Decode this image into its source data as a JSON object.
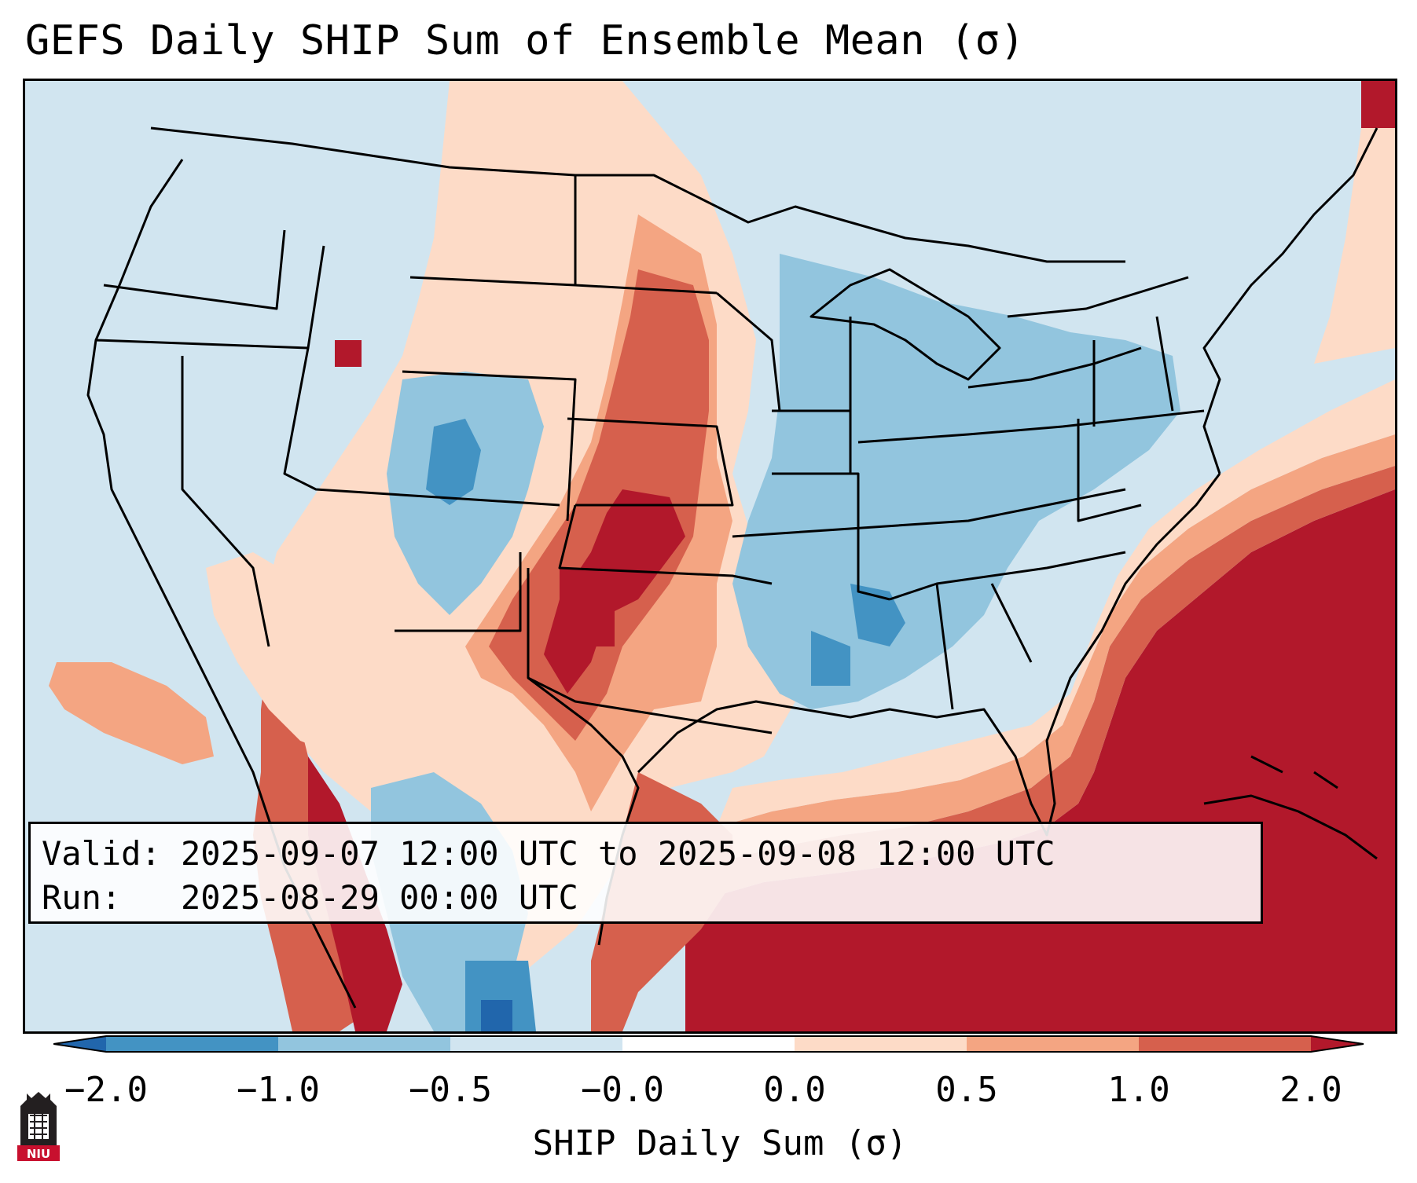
{
  "title": "GEFS Daily SHIP Sum of Ensemble Mean (σ)",
  "info": {
    "valid_line": "Valid: 2025-09-07 12:00 UTC to 2025-09-08 12:00 UTC",
    "run_line": "Run:   2025-08-29 00:00 UTC"
  },
  "colorbar": {
    "label": "SHIP Daily Sum (σ)",
    "ticks": [
      "−2.0",
      "−1.0",
      "−0.5",
      "−0.0",
      "0.0",
      "0.5",
      "1.0",
      "2.0"
    ],
    "bins": [
      "#2166ac",
      "#4393c3",
      "#92c5de",
      "#d1e5f0",
      "#ffffff",
      "#fddbc7",
      "#f4a582",
      "#d6604d",
      "#b2182b"
    ],
    "colors": {
      "strong_neg": "#2166ac",
      "neg": "#4393c3",
      "weak_neg": "#92c5de",
      "slight_neg": "#d1e5f0",
      "neutral": "#ffffff",
      "slight_pos": "#fddbc7",
      "weak_pos": "#f4a582",
      "pos": "#d6604d",
      "strong_pos": "#b2182b"
    }
  },
  "logo": {
    "text": "NIU"
  }
}
